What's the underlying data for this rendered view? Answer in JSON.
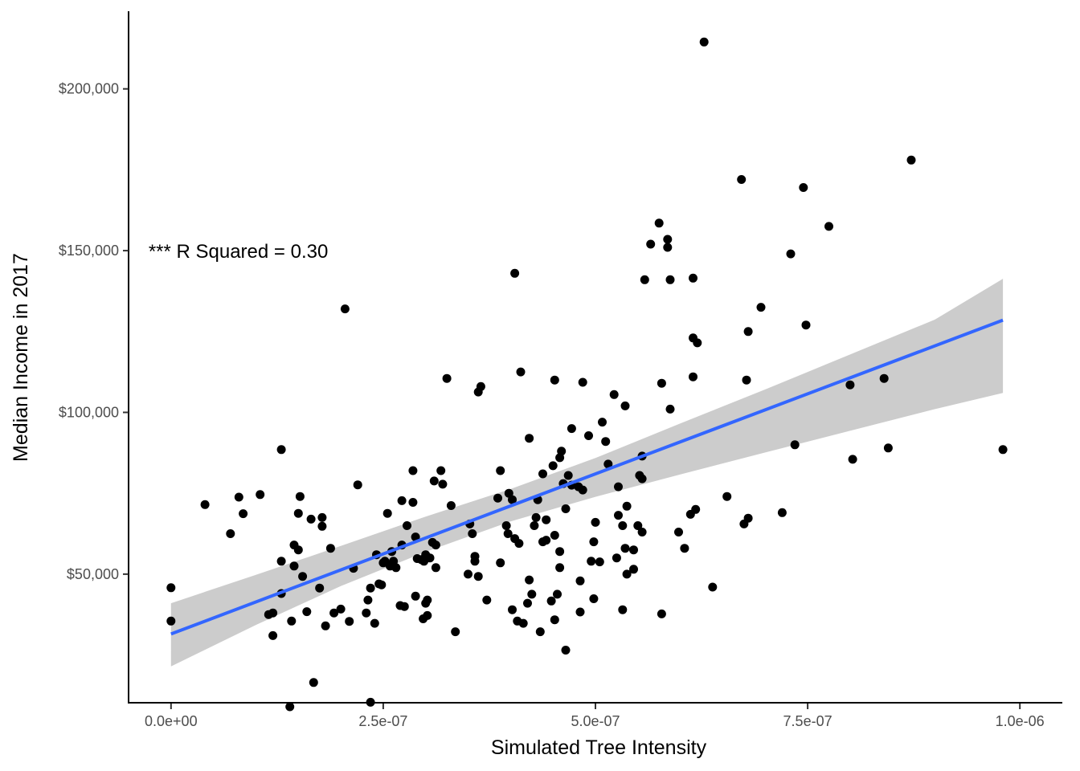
{
  "chart_data": {
    "type": "scatter",
    "title": "",
    "xlabel": "Simulated Tree Intensity",
    "ylabel": "Median Income in 2017",
    "xlim": [
      -5e-08,
      1.05e-06
    ],
    "ylim": [
      10000,
      224000
    ],
    "x_ticks": [
      0,
      2.5e-07,
      5e-07,
      7.5e-07,
      1e-06
    ],
    "x_tick_labels": [
      "0.0e+00",
      "2.5e-07",
      "5.0e-07",
      "7.5e-07",
      "1.0e-06"
    ],
    "y_ticks": [
      50000,
      100000,
      150000,
      200000
    ],
    "y_tick_labels": [
      "$50,000",
      "$100,000",
      "$150,000",
      "$200,000"
    ],
    "grid": false,
    "legend": "none",
    "annotation": {
      "text": "*** R Squared = 0.30",
      "x": 0,
      "y": 150000
    },
    "fit": {
      "type": "linear",
      "color": "#3366FF",
      "band_color": "#CCCCCC",
      "x": [
        0,
        9.8e-07
      ],
      "y": [
        31500,
        128500
      ],
      "band_x": [
        0,
        1e-07,
        2e-07,
        3e-07,
        4e-07,
        5e-07,
        6e-07,
        7e-07,
        8e-07,
        9e-07,
        9.8e-07
      ],
      "band_lower": [
        21500,
        34300,
        46300,
        56900,
        66300,
        73900,
        80800,
        87600,
        94300,
        101000,
        106000
      ],
      "band_upper": [
        41000,
        49800,
        58700,
        67800,
        76300,
        85900,
        96600,
        107100,
        117900,
        128700,
        141300
      ]
    },
    "point_color": "#000000",
    "points": [
      [
        0,
        45800
      ],
      [
        0,
        35500
      ],
      [
        4e-08,
        71500
      ],
      [
        7e-08,
        62500
      ],
      [
        8e-08,
        73800
      ],
      [
        8.5e-08,
        68700
      ],
      [
        1.05e-07,
        74600
      ],
      [
        1.15e-07,
        37500
      ],
      [
        1.2e-07,
        38000
      ],
      [
        1.2e-07,
        31000
      ],
      [
        1.3e-07,
        88500
      ],
      [
        1.3e-07,
        54000
      ],
      [
        1.3e-07,
        44000
      ],
      [
        1.4e-07,
        9000
      ],
      [
        1.42e-07,
        35500
      ],
      [
        1.45e-07,
        59000
      ],
      [
        1.45e-07,
        52500
      ],
      [
        1.5e-07,
        57500
      ],
      [
        1.5e-07,
        68800
      ],
      [
        1.52e-07,
        74000
      ],
      [
        1.55e-07,
        49300
      ],
      [
        1.6e-07,
        38400
      ],
      [
        1.65e-07,
        67000
      ],
      [
        1.68e-07,
        16500
      ],
      [
        1.75e-07,
        45700
      ],
      [
        1.78e-07,
        67500
      ],
      [
        1.78e-07,
        64800
      ],
      [
        1.82e-07,
        34000
      ],
      [
        1.88e-07,
        58000
      ],
      [
        1.92e-07,
        38000
      ],
      [
        2e-07,
        39200
      ],
      [
        2.05e-07,
        132000
      ],
      [
        2.1e-07,
        35400
      ],
      [
        2.15e-07,
        51800
      ],
      [
        2.2e-07,
        77600
      ],
      [
        2.3e-07,
        38000
      ],
      [
        2.32e-07,
        42000
      ],
      [
        2.35e-07,
        10400
      ],
      [
        2.35e-07,
        45700
      ],
      [
        2.4e-07,
        34800
      ],
      [
        2.42e-07,
        56000
      ],
      [
        2.45e-07,
        47000
      ],
      [
        2.48e-07,
        46700
      ],
      [
        2.5e-07,
        53500
      ],
      [
        2.52e-07,
        54000
      ],
      [
        2.55e-07,
        68800
      ],
      [
        2.58e-07,
        52500
      ],
      [
        2.6e-07,
        57000
      ],
      [
        2.62e-07,
        54000
      ],
      [
        2.65e-07,
        52000
      ],
      [
        2.7e-07,
        40300
      ],
      [
        2.72e-07,
        72700
      ],
      [
        2.72e-07,
        59000
      ],
      [
        2.75e-07,
        40000
      ],
      [
        2.78e-07,
        65000
      ],
      [
        2.85e-07,
        82000
      ],
      [
        2.85e-07,
        72200
      ],
      [
        2.88e-07,
        43200
      ],
      [
        2.88e-07,
        61500
      ],
      [
        2.9e-07,
        54800
      ],
      [
        2.95e-07,
        54500
      ],
      [
        2.97e-07,
        36200
      ],
      [
        2.98e-07,
        54000
      ],
      [
        3e-07,
        56000
      ],
      [
        3e-07,
        41000
      ],
      [
        3.02e-07,
        37200
      ],
      [
        3.02e-07,
        42000
      ],
      [
        3.05e-07,
        55000
      ],
      [
        3.08e-07,
        59800
      ],
      [
        3.1e-07,
        78800
      ],
      [
        3.12e-07,
        59000
      ],
      [
        3.12e-07,
        52000
      ],
      [
        3.18e-07,
        82000
      ],
      [
        3.2e-07,
        77800
      ],
      [
        3.25e-07,
        110500
      ],
      [
        3.3e-07,
        71200
      ],
      [
        3.35e-07,
        32200
      ],
      [
        3.5e-07,
        50000
      ],
      [
        3.52e-07,
        65500
      ],
      [
        3.55e-07,
        62500
      ],
      [
        3.58e-07,
        54000
      ],
      [
        3.58e-07,
        55500
      ],
      [
        3.62e-07,
        49300
      ],
      [
        3.62e-07,
        106300
      ],
      [
        3.65e-07,
        108000
      ],
      [
        3.72e-07,
        42000
      ],
      [
        3.85e-07,
        73500
      ],
      [
        3.88e-07,
        82000
      ],
      [
        3.88e-07,
        53500
      ],
      [
        3.95e-07,
        65000
      ],
      [
        3.97e-07,
        62500
      ],
      [
        3.98e-07,
        75000
      ],
      [
        4.02e-07,
        73000
      ],
      [
        4.02e-07,
        39000
      ],
      [
        4.05e-07,
        61000
      ],
      [
        4.05e-07,
        143000
      ],
      [
        4.08e-07,
        35500
      ],
      [
        4.1e-07,
        59500
      ],
      [
        4.12e-07,
        112500
      ],
      [
        4.15e-07,
        34800
      ],
      [
        4.2e-07,
        41000
      ],
      [
        4.22e-07,
        92000
      ],
      [
        4.22e-07,
        48200
      ],
      [
        4.25e-07,
        43800
      ],
      [
        4.28e-07,
        65000
      ],
      [
        4.3e-07,
        67500
      ],
      [
        4.32e-07,
        73000
      ],
      [
        4.35e-07,
        32200
      ],
      [
        4.38e-07,
        81000
      ],
      [
        4.38e-07,
        60000
      ],
      [
        4.42e-07,
        66800
      ],
      [
        4.42e-07,
        60500
      ],
      [
        4.48e-07,
        41700
      ],
      [
        4.5e-07,
        83500
      ],
      [
        4.52e-07,
        110000
      ],
      [
        4.52e-07,
        62000
      ],
      [
        4.52e-07,
        35900
      ],
      [
        4.55e-07,
        43800
      ],
      [
        4.58e-07,
        52000
      ],
      [
        4.58e-07,
        57000
      ],
      [
        4.58e-07,
        86000
      ],
      [
        4.6e-07,
        88000
      ],
      [
        4.62e-07,
        78000
      ],
      [
        4.65e-07,
        70200
      ],
      [
        4.65e-07,
        26500
      ],
      [
        4.68e-07,
        80500
      ],
      [
        4.72e-07,
        95000
      ],
      [
        4.72e-07,
        77500
      ],
      [
        4.8e-07,
        77000
      ],
      [
        4.82e-07,
        47900
      ],
      [
        4.82e-07,
        38300
      ],
      [
        4.85e-07,
        76000
      ],
      [
        4.85e-07,
        109300
      ],
      [
        4.92e-07,
        92800
      ],
      [
        4.95e-07,
        54000
      ],
      [
        4.98e-07,
        42400
      ],
      [
        4.98e-07,
        60000
      ],
      [
        5e-07,
        66000
      ],
      [
        5.05e-07,
        53800
      ],
      [
        5.08e-07,
        97000
      ],
      [
        5.12e-07,
        91000
      ],
      [
        5.15e-07,
        84000
      ],
      [
        5.22e-07,
        105500
      ],
      [
        5.25e-07,
        55000
      ],
      [
        5.27e-07,
        68200
      ],
      [
        5.27e-07,
        77000
      ],
      [
        5.32e-07,
        65000
      ],
      [
        5.32e-07,
        39000
      ],
      [
        5.35e-07,
        58000
      ],
      [
        5.35e-07,
        102000
      ],
      [
        5.37e-07,
        71000
      ],
      [
        5.37e-07,
        50000
      ],
      [
        5.45e-07,
        51500
      ],
      [
        5.45e-07,
        57500
      ],
      [
        5.5e-07,
        65000
      ],
      [
        5.52e-07,
        80500
      ],
      [
        5.55e-07,
        63000
      ],
      [
        5.55e-07,
        86500
      ],
      [
        5.55e-07,
        79500
      ],
      [
        5.58e-07,
        141000
      ],
      [
        5.65e-07,
        152000
      ],
      [
        5.75e-07,
        158500
      ],
      [
        5.78e-07,
        37700
      ],
      [
        5.78e-07,
        109000
      ],
      [
        5.85e-07,
        151000
      ],
      [
        5.85e-07,
        153500
      ],
      [
        5.88e-07,
        141000
      ],
      [
        5.88e-07,
        101000
      ],
      [
        5.98e-07,
        63000
      ],
      [
        6.05e-07,
        58000
      ],
      [
        6.12e-07,
        68500
      ],
      [
        6.15e-07,
        123000
      ],
      [
        6.15e-07,
        141500
      ],
      [
        6.15e-07,
        111000
      ],
      [
        6.18e-07,
        70000
      ],
      [
        6.2e-07,
        121500
      ],
      [
        6.28e-07,
        214500
      ],
      [
        6.38e-07,
        46000
      ],
      [
        6.55e-07,
        74000
      ],
      [
        6.72e-07,
        172000
      ],
      [
        6.75e-07,
        65500
      ],
      [
        6.78e-07,
        110000
      ],
      [
        6.8e-07,
        125000
      ],
      [
        6.8e-07,
        67300
      ],
      [
        6.95e-07,
        132500
      ],
      [
        7.2e-07,
        69000
      ],
      [
        7.3e-07,
        149000
      ],
      [
        7.35e-07,
        90000
      ],
      [
        7.45e-07,
        169500
      ],
      [
        7.48e-07,
        127000
      ],
      [
        7.75e-07,
        157500
      ],
      [
        8e-07,
        108500
      ],
      [
        8.03e-07,
        85500
      ],
      [
        8.4e-07,
        110500
      ],
      [
        8.45e-07,
        89000
      ],
      [
        8.72e-07,
        178000
      ],
      [
        9.8e-07,
        88500
      ]
    ]
  }
}
